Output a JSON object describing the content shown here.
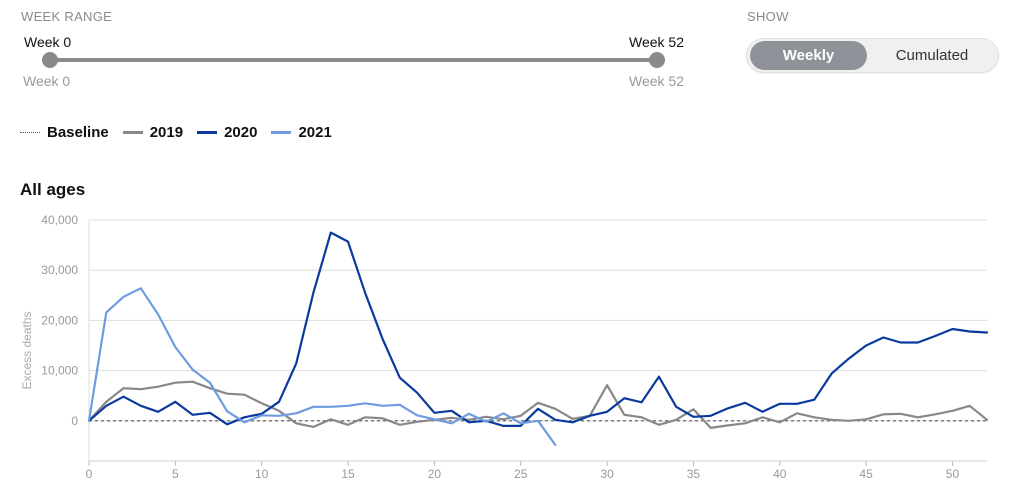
{
  "controls": {
    "week_range_label": "WEEK RANGE",
    "range_start_label": "Week 0",
    "range_end_label": "Week 52",
    "show_label": "SHOW",
    "toggle_options": [
      "Weekly",
      "Cumulated"
    ],
    "toggle_selected": "Weekly"
  },
  "colors": {
    "2019": "#888888",
    "2020": "#0b3a9e",
    "2021": "#6f9be0",
    "baseline": "#555555",
    "grid": "#dddddd"
  },
  "chart_data": {
    "type": "line",
    "title": "All ages",
    "xlabel": "",
    "ylabel": "Excess deaths",
    "xlim": [
      0,
      52
    ],
    "ylim": [
      -8000,
      40000
    ],
    "xticks": [
      0,
      5,
      10,
      15,
      20,
      25,
      30,
      35,
      40,
      45,
      50
    ],
    "yticks": [
      0,
      10000,
      20000,
      30000,
      40000
    ],
    "ytick_labels": [
      "0",
      "10,000",
      "20,000",
      "30,000",
      "40,000"
    ],
    "grid": true,
    "legend": [
      "Baseline",
      "2019",
      "2020",
      "2021"
    ],
    "legend_position": "top-left",
    "baseline": 0,
    "series": [
      {
        "name": "2019",
        "x": [
          0,
          1,
          2,
          3,
          4,
          5,
          6,
          7,
          8,
          9,
          10,
          11,
          12,
          13,
          14,
          15,
          16,
          17,
          18,
          19,
          20,
          21,
          22,
          23,
          24,
          25,
          26,
          27,
          28,
          29,
          30,
          31,
          32,
          33,
          34,
          35,
          36,
          37,
          38,
          39,
          40,
          41,
          42,
          43,
          44,
          45,
          46,
          47,
          48,
          49,
          50,
          51,
          52
        ],
        "values": [
          0,
          3800,
          6500,
          6300,
          6800,
          7600,
          7800,
          6500,
          5400,
          5200,
          3500,
          2000,
          -500,
          -1200,
          300,
          -800,
          700,
          500,
          -800,
          -200,
          200,
          600,
          200,
          800,
          300,
          1000,
          3600,
          2400,
          400,
          1000,
          7100,
          1200,
          700,
          -800,
          200,
          2300,
          -1400,
          -900,
          -500,
          700,
          -300,
          1500,
          700,
          200,
          0,
          300,
          1300,
          1400,
          700,
          1300,
          2000,
          3000,
          200
        ]
      },
      {
        "name": "2020",
        "x": [
          0,
          1,
          2,
          3,
          4,
          5,
          6,
          7,
          8,
          9,
          10,
          11,
          12,
          13,
          14,
          15,
          16,
          17,
          18,
          19,
          20,
          21,
          22,
          23,
          24,
          25,
          26,
          27,
          28,
          29,
          30,
          31,
          32,
          33,
          34,
          35,
          36,
          37,
          38,
          39,
          40,
          41,
          42,
          43,
          44,
          45,
          46,
          47,
          48,
          49,
          50,
          51,
          52
        ],
        "values": [
          0,
          3000,
          4800,
          3000,
          1800,
          3800,
          1200,
          1600,
          -700,
          700,
          1400,
          3800,
          11400,
          25600,
          37500,
          35700,
          25400,
          16300,
          8600,
          5600,
          1600,
          2000,
          -300,
          0,
          -1000,
          -1000,
          2400,
          200,
          -300,
          1000,
          1800,
          4500,
          3700,
          8800,
          2800,
          800,
          1000,
          2500,
          3600,
          1800,
          3400,
          3400,
          4200,
          9400,
          12400,
          15000,
          16600,
          15600,
          15600,
          16900,
          18300,
          17800,
          17600
        ]
      },
      {
        "name": "2021",
        "x": [
          0,
          1,
          2,
          3,
          4,
          5,
          6,
          7,
          8,
          9,
          10,
          11,
          12,
          13,
          14,
          15,
          16,
          17,
          18,
          19,
          20,
          21,
          22,
          23,
          24,
          25,
          26,
          27
        ],
        "values": [
          0,
          21600,
          24700,
          26400,
          21200,
          14700,
          10200,
          7600,
          1900,
          -300,
          1100,
          1000,
          1500,
          2800,
          2800,
          3000,
          3500,
          3000,
          3200,
          1100,
          300,
          -500,
          1400,
          -200,
          1500,
          -500,
          0,
          -4800
        ]
      }
    ]
  }
}
